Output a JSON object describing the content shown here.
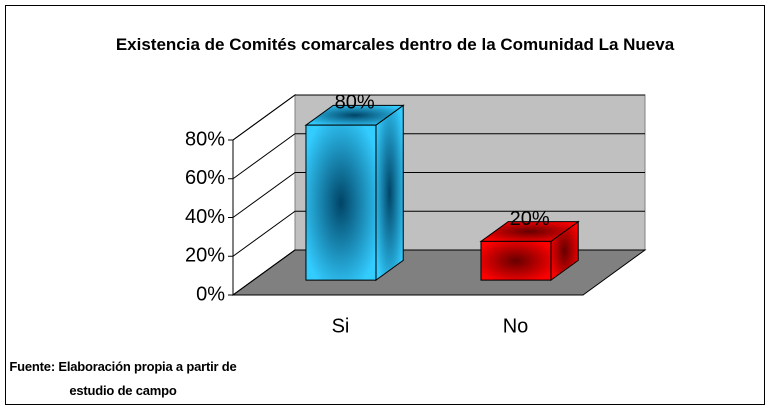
{
  "chart_data": {
    "type": "bar3d",
    "title": "Existencia de Comités comarcales dentro de la Comunidad La Nueva",
    "categories": [
      "Si",
      "No"
    ],
    "values": [
      80,
      20
    ],
    "value_labels": [
      "80%",
      "20%"
    ],
    "colors": [
      "#33ccff",
      "#ff0000"
    ],
    "ylim": [
      0,
      80
    ],
    "yticks": [
      {
        "value": 0,
        "label": "0%"
      },
      {
        "value": 20,
        "label": "20%"
      },
      {
        "value": 40,
        "label": "40%"
      },
      {
        "value": 60,
        "label": "60%"
      },
      {
        "value": 80,
        "label": "80%"
      }
    ],
    "grid": true,
    "source": "Fuente: Elaboración propia a partir de estudio de campo"
  }
}
